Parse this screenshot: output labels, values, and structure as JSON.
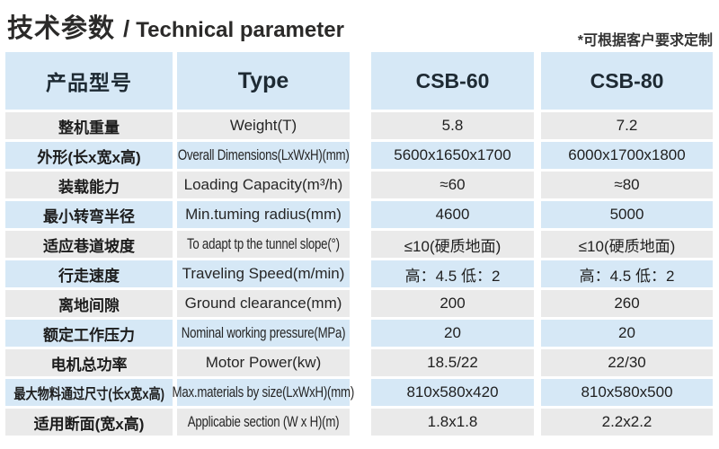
{
  "title": {
    "zh": "技术参数",
    "sep": "/",
    "en": "Technical parameter"
  },
  "note": "*可根据客户要求定制",
  "colors": {
    "row_blue": "#d6e8f6",
    "row_grey": "#eaeaea",
    "text": "#222222"
  },
  "table": {
    "headers": {
      "product_model": "产品型号",
      "type": "Type",
      "model_a": "CSB-60",
      "model_b": "CSB-80"
    },
    "rows": [
      {
        "zh": "整机重量",
        "en": "Weight(T)",
        "csb60": "5.8",
        "csb80": "7.2"
      },
      {
        "zh": "外形(长x宽x高)",
        "en": "Overall Dimensions(LxWxH)(mm)",
        "csb60": "5600x1650x1700",
        "csb80": "6000x1700x1800"
      },
      {
        "zh": "装载能力",
        "en": "Loading Capacity(m³/h)",
        "csb60": "≈60",
        "csb80": "≈80"
      },
      {
        "zh": "最小转弯半径",
        "en": "Min.tuming radius(mm)",
        "csb60": "4600",
        "csb80": "5000"
      },
      {
        "zh": "适应巷道坡度",
        "en": "To adapt tp the tunnel slope(°)",
        "csb60": "≤10(硬质地面)",
        "csb80": "≤10(硬质地面)"
      },
      {
        "zh": "行走速度",
        "en": "Traveling Speed(m/min)",
        "csb60": "高：4.5 低：2",
        "csb80": "高：4.5 低：2"
      },
      {
        "zh": "离地间隙",
        "en": "Ground clearance(mm)",
        "csb60": "200",
        "csb80": "260"
      },
      {
        "zh": "额定工作压力",
        "en": "Nominal working pressure(MPa)",
        "csb60": "20",
        "csb80": "20"
      },
      {
        "zh": "电机总功率",
        "en": "Motor Power(kw)",
        "csb60": "18.5/22",
        "csb80": "22/30"
      },
      {
        "zh": "最大物料通过尺寸(长x宽x高)",
        "en": "Max.materials by size(LxWxH)(mm)",
        "csb60": "810x580x420",
        "csb80": "810x580x500"
      },
      {
        "zh": "适用断面(宽x高)",
        "en": "Applicabie section (W x H)(m)",
        "csb60": "1.8x1.8",
        "csb80": "2.2x2.2"
      }
    ]
  }
}
